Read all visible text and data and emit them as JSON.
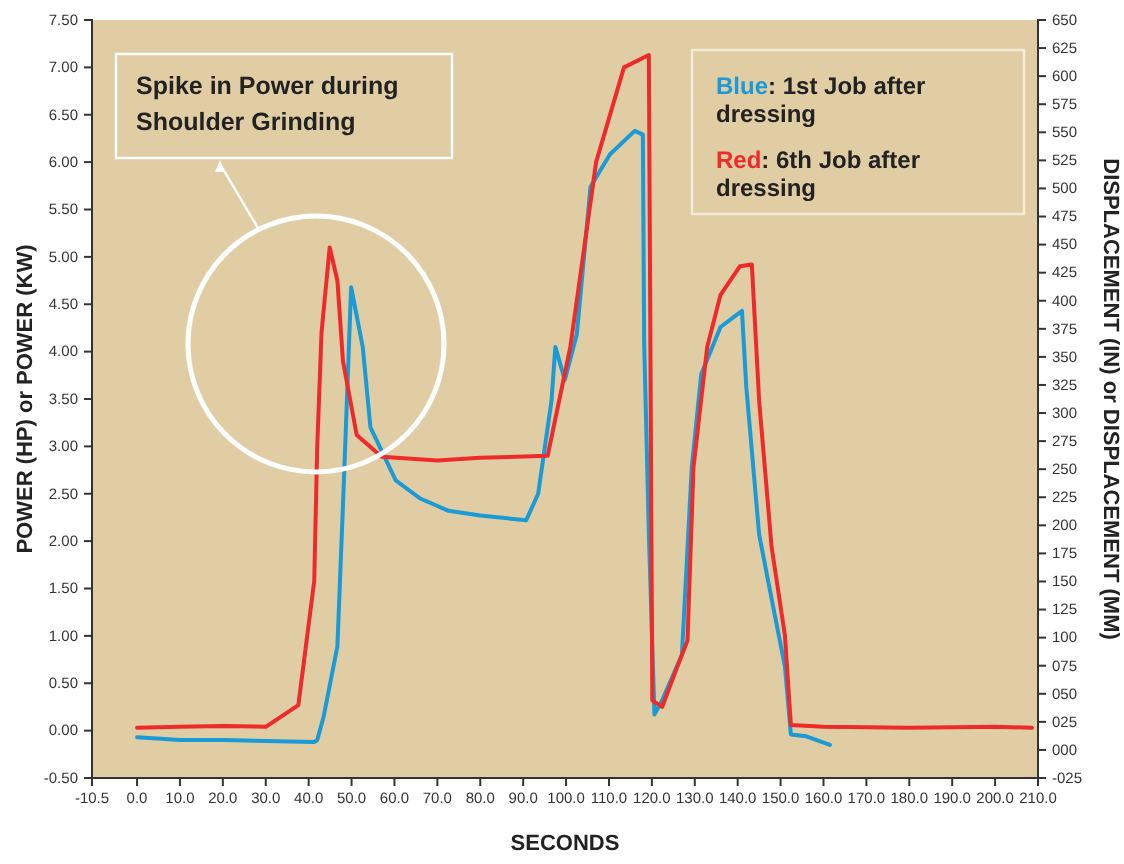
{
  "chart_data": {
    "type": "line",
    "xlabel": "SECONDS",
    "ylabel": "POWER (HP)  or  POWER (KW)",
    "y2label": "DISPLACEMENT (IN)  or  DISPLACEMENT (MM)",
    "xlim": [
      -10.5,
      210
    ],
    "xticks": [
      {
        "value": -10.5,
        "label": "-10.5"
      },
      {
        "value": 0,
        "label": "0.0"
      },
      {
        "value": 10,
        "label": "10.0"
      },
      {
        "value": 20,
        "label": "20.0"
      },
      {
        "value": 30,
        "label": "30.0"
      },
      {
        "value": 40,
        "label": "40.0"
      },
      {
        "value": 50,
        "label": "50.0"
      },
      {
        "value": 60,
        "label": "60.0"
      },
      {
        "value": 70,
        "label": "70.0"
      },
      {
        "value": 80,
        "label": "80.0"
      },
      {
        "value": 90,
        "label": "90.0"
      },
      {
        "value": 100,
        "label": "100.0"
      },
      {
        "value": 110,
        "label": "110.0"
      },
      {
        "value": 120,
        "label": "120.0"
      },
      {
        "value": 130,
        "label": "130.0"
      },
      {
        "value": 140,
        "label": "140.0"
      },
      {
        "value": 150,
        "label": "150.0"
      },
      {
        "value": 160,
        "label": "160.0"
      },
      {
        "value": 170,
        "label": "170.0"
      },
      {
        "value": 180,
        "label": "180.0"
      },
      {
        "value": 190,
        "label": "190.0"
      },
      {
        "value": 200,
        "label": "200.0"
      },
      {
        "value": 210,
        "label": "210.0"
      }
    ],
    "ylim": [
      -0.5,
      7.5
    ],
    "yticks": [
      {
        "value": -0.5,
        "label": "-0.50"
      },
      {
        "value": 0,
        "label": "0.00"
      },
      {
        "value": 0.5,
        "label": "0.50"
      },
      {
        "value": 1,
        "label": "1.00"
      },
      {
        "value": 1.5,
        "label": "1.50"
      },
      {
        "value": 2,
        "label": "2.00"
      },
      {
        "value": 2.5,
        "label": "2.50"
      },
      {
        "value": 3,
        "label": "3.00"
      },
      {
        "value": 3.5,
        "label": "3.50"
      },
      {
        "value": 4,
        "label": "4.00"
      },
      {
        "value": 4.5,
        "label": "4.50"
      },
      {
        "value": 5,
        "label": "5.00"
      },
      {
        "value": 5.5,
        "label": "5.50"
      },
      {
        "value": 6,
        "label": "6.00"
      },
      {
        "value": 6.5,
        "label": "6.50"
      },
      {
        "value": 7,
        "label": "7.00"
      },
      {
        "value": 7.5,
        "label": "7.50"
      }
    ],
    "y2lim": [
      -25,
      650
    ],
    "y2ticks": [
      {
        "value": -25,
        "label": "-025"
      },
      {
        "value": 0,
        "label": "000"
      },
      {
        "value": 25,
        "label": "025"
      },
      {
        "value": 50,
        "label": "050"
      },
      {
        "value": 75,
        "label": "075"
      },
      100,
      125,
      150,
      175,
      200,
      225,
      250,
      275,
      300,
      325,
      350,
      375,
      400,
      425,
      450,
      475,
      500,
      525,
      550,
      575,
      600,
      625,
      650
    ],
    "grid": false,
    "legend": "top right",
    "marker": "none",
    "line_style": "solid",
    "annotations": [
      "Spike in Power during Shoulder Grinding"
    ],
    "series": [
      {
        "name": "Blue: 1st Job after dressing",
        "color": "#1a9ad6",
        "x": [
          0,
          10,
          20,
          30,
          41.3,
          42,
          43.5,
          46.7,
          48.1,
          49.9,
          52.6,
          54.4,
          60.3,
          66,
          72.6,
          80,
          90.7,
          93.5,
          96.6,
          97.5,
          99.7,
          102.5,
          105.7,
          110.2,
          116,
          117.9,
          118.2,
          119.3,
          120.6,
          122.4,
          127,
          129.3,
          131.5,
          136,
          141,
          142,
          145,
          148,
          151,
          152.4,
          156,
          161.5
        ],
        "values": [
          -0.07,
          -0.1,
          -0.1,
          -0.11,
          -0.12,
          -0.1,
          0.15,
          0.89,
          2.5,
          4.68,
          4.05,
          3.2,
          2.64,
          2.45,
          2.32,
          2.27,
          2.22,
          2.5,
          3.48,
          4.05,
          3.7,
          4.18,
          5.74,
          6.08,
          6.33,
          6.29,
          4.1,
          2.07,
          0.17,
          0.32,
          0.8,
          2.78,
          3.76,
          4.26,
          4.43,
          3.63,
          2.07,
          1.37,
          0.68,
          -0.04,
          -0.06,
          -0.15
        ]
      },
      {
        "name": "Red: 6th Job after dressing",
        "color": "#ee2a2a",
        "x": [
          0,
          10,
          20,
          30,
          37.6,
          41.3,
          42,
          43,
          44.9,
          46.7,
          48,
          51.2,
          57,
          70,
          80,
          95.7,
          101,
          107,
          113.5,
          119.3,
          120.1,
          122.4,
          125.2,
          128.3,
          129.7,
          132.9,
          136,
          140.5,
          143.3,
          145,
          147.9,
          151,
          152.4,
          160,
          180,
          200,
          208.6
        ],
        "values": [
          0.03,
          0.04,
          0.05,
          0.04,
          0.27,
          1.58,
          3,
          4.2,
          5.1,
          4.75,
          3.9,
          3.12,
          2.89,
          2.85,
          2.88,
          2.9,
          4.05,
          6,
          7,
          7.13,
          0.32,
          0.25,
          0.59,
          0.95,
          2.78,
          4.05,
          4.6,
          4.9,
          4.92,
          3.48,
          1.94,
          1.01,
          0.06,
          0.04,
          0.03,
          0.04,
          0.03
        ]
      }
    ]
  }
}
